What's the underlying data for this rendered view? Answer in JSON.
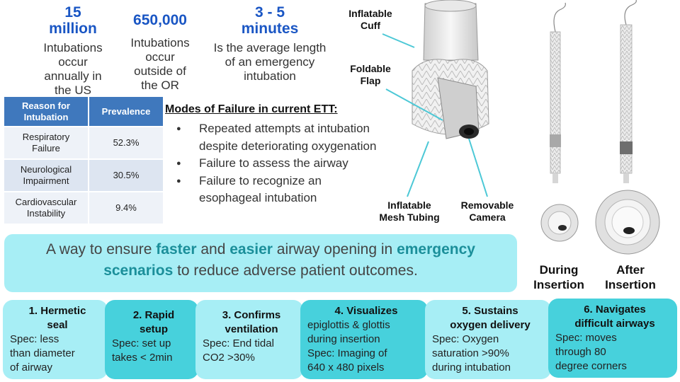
{
  "stats": [
    {
      "num_line1": "15",
      "num_line2": "million",
      "desc": [
        "Intubations",
        "occur",
        "annually in",
        "the US"
      ]
    },
    {
      "num_line1": "650,000",
      "num_line2": "",
      "desc": [
        "Intubations",
        "occur",
        "outside of",
        "the OR"
      ]
    },
    {
      "num_line1": "3 - 5",
      "num_line2": "minutes",
      "desc": [
        "Is the average length",
        "of an emergency",
        "intubation"
      ]
    }
  ],
  "table": {
    "headers": [
      [
        "Reason for",
        "Intubation"
      ],
      [
        "Prevalence"
      ]
    ],
    "rows": [
      {
        "reason": [
          "Respiratory",
          "Failure"
        ],
        "value": "52.3%"
      },
      {
        "reason": [
          "Neurological",
          "Impairment"
        ],
        "value": "30.5%"
      },
      {
        "reason": [
          "Cardiovascular",
          "Instability"
        ],
        "value": "9.4%"
      }
    ]
  },
  "failures": {
    "title": "Modes of Failure in current ETT:",
    "items": [
      "Repeated attempts at intubation despite deteriorating oxygenation",
      "Failure to assess the airway",
      "Failure to recognize an esophageal intubation"
    ]
  },
  "device_labels": {
    "cuff": [
      "Inflatable",
      "Cuff"
    ],
    "flap": [
      "Foldable",
      "Flap"
    ],
    "tubing": [
      "Inflatable",
      "Mesh Tubing"
    ],
    "camera": [
      "Removable",
      "Camera"
    ]
  },
  "banner": {
    "p1": "A way to ensure ",
    "b1": "faster",
    "p2": " and ",
    "b2": "easier",
    "p3": " airway opening in ",
    "b3": "emergency",
    "b4": "scenarios",
    "p4": " to reduce adverse patient outcomes."
  },
  "side_labels": {
    "during": [
      "During",
      "Insertion"
    ],
    "after": [
      "After",
      "Insertion"
    ]
  },
  "cards": [
    {
      "title": [
        "1. Hermetic",
        "seal"
      ],
      "spec": [
        "Spec: less",
        "than diameter",
        "of airway"
      ]
    },
    {
      "title": [
        "2. Rapid",
        "setup"
      ],
      "spec": [
        "Spec: set up",
        "takes < 2min"
      ]
    },
    {
      "title": [
        "3. Confirms",
        "ventilation"
      ],
      "spec": [
        "Spec: End tidal",
        "CO2 >30%"
      ]
    },
    {
      "title": [
        "4. Visualizes"
      ],
      "spec": [
        "epiglottis & glottis",
        "during insertion",
        "Spec: Imaging of",
        "640 x 480 pixels"
      ]
    },
    {
      "title": [
        "5. Sustains",
        "oxygen delivery"
      ],
      "spec": [
        "Spec: Oxygen",
        "saturation >90%",
        "during intubation"
      ]
    },
    {
      "title": [
        "6. Navigates",
        "difficult airways"
      ],
      "spec": [
        "Spec: moves",
        "through 80",
        "degree corners"
      ]
    }
  ],
  "colors": {
    "accent_blue": "#1a56c4",
    "table_header": "#3f78bd",
    "banner_bg": "#a7eef5",
    "card_dark": "#47d1dc",
    "emphasis": "#1b8f9a",
    "pointer": "#4cc8d6"
  }
}
